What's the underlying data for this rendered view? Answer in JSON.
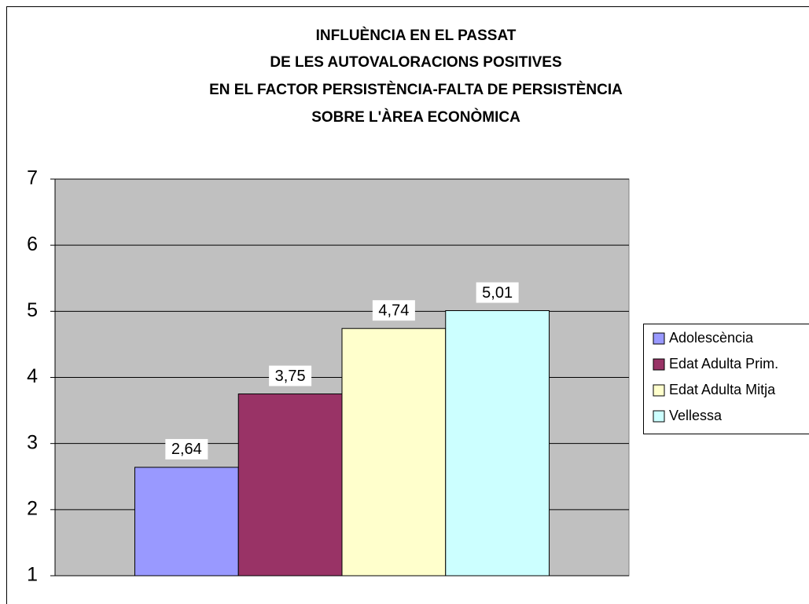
{
  "chart_data": {
    "type": "bar",
    "title": [
      "INFLUÈNCIA EN EL PASSAT",
      "DE LES AUTOVALORACIONS POSITIVES",
      "EN EL FACTOR PERSISTÈNCIA-FALTA DE PERSISTÈNCIA",
      "SOBRE L'ÀREA ECONÒMICA"
    ],
    "categories": [
      null
    ],
    "series": [
      {
        "name": "Adolescència",
        "color": "#9999ff",
        "values": [
          2.64
        ],
        "value_labels": [
          "2,64"
        ]
      },
      {
        "name": "Edat Adulta Prim.",
        "color": "#993366",
        "values": [
          3.75
        ],
        "value_labels": [
          "3,75"
        ]
      },
      {
        "name": "Edat Adulta Mitja",
        "color": "#ffffcc",
        "values": [
          4.74
        ],
        "value_labels": [
          "4,74"
        ]
      },
      {
        "name": "Vellessa",
        "color": "#ccffff",
        "values": [
          5.01
        ],
        "value_labels": [
          "5,01"
        ]
      }
    ],
    "ylim": [
      1,
      7
    ],
    "yticks": [
      1,
      2,
      3,
      4,
      5,
      6,
      7
    ],
    "grid": true,
    "legend": "right"
  }
}
